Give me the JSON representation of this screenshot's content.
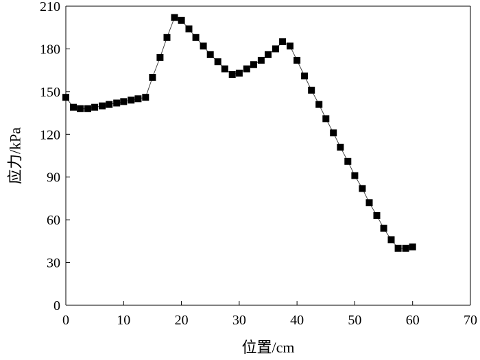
{
  "chart_data": {
    "type": "line",
    "title": "",
    "xlabel": "位置/cm",
    "ylabel": "应力/kPa",
    "xlim": [
      0,
      70
    ],
    "ylim": [
      0,
      210
    ],
    "xticks": [
      0,
      10,
      20,
      30,
      40,
      50,
      60,
      70
    ],
    "yticks": [
      0,
      30,
      60,
      90,
      120,
      150,
      180,
      210
    ],
    "grid": false,
    "marker": "square",
    "marker_color": "#000000",
    "line_color": "#444444",
    "series": [
      {
        "x": [
          0,
          1.3,
          2.5,
          3.8,
          5.0,
          6.3,
          7.5,
          8.8,
          10.0,
          11.3,
          12.5,
          13.8,
          15.0,
          16.3,
          17.5,
          18.8,
          20.0,
          21.3,
          22.5,
          23.8,
          25.0,
          26.3,
          27.5,
          28.8,
          30.0,
          31.3,
          32.5,
          33.8,
          35.0,
          36.3,
          37.5,
          38.8,
          40.0,
          41.3,
          42.5,
          43.8,
          45.0,
          46.3,
          47.5,
          48.8,
          50.0,
          51.3,
          52.5,
          53.8,
          55.0,
          56.3,
          57.5,
          58.8,
          60.0
        ],
        "y": [
          146,
          139,
          138,
          138,
          139,
          140,
          141,
          142,
          143,
          144,
          145,
          146,
          160,
          174,
          188,
          202,
          200,
          194,
          188,
          182,
          176,
          171,
          166,
          162,
          163,
          166,
          169,
          172,
          176,
          180,
          185,
          182,
          172,
          161,
          151,
          141,
          131,
          121,
          111,
          101,
          91,
          82,
          72,
          63,
          54,
          46,
          40,
          40,
          41
        ]
      }
    ]
  }
}
